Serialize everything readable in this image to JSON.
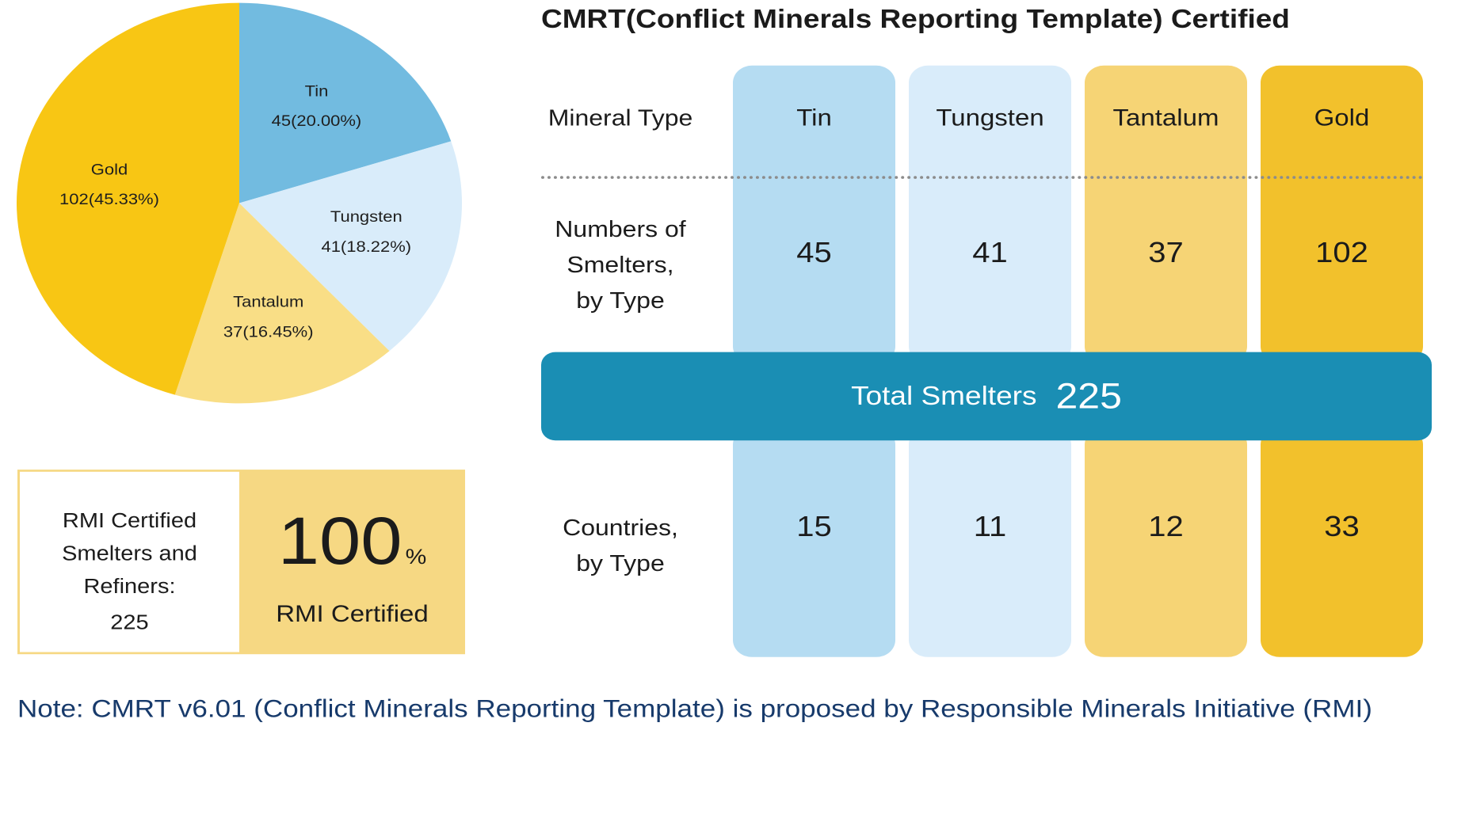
{
  "title": "CMRT(Conflict Minerals Reporting Template) Certified",
  "chart_data": {
    "type": "pie",
    "slices": [
      {
        "label": "Tin",
        "value": 45,
        "percent_label": "45(20.00%)",
        "color": "#72bbe0"
      },
      {
        "label": "Tungsten",
        "value": 41,
        "percent_label": "41(18.22%)",
        "color": "#d9ecfa"
      },
      {
        "label": "Tantalum",
        "value": 37,
        "percent_label": "37(16.45%)",
        "color": "#f9de86"
      },
      {
        "label": "Gold",
        "value": 102,
        "percent_label": "102(45.33%)",
        "color": "#f8c614"
      }
    ]
  },
  "rmi": {
    "label": "RMI Certified\nSmelters and\nRefiners:",
    "count": "225",
    "percent": "100",
    "percent_unit": "%",
    "certified_label": "RMI Certified"
  },
  "table": {
    "row_labels": {
      "mineral_type": "Mineral Type",
      "smelters": "Numbers of\nSmelters,\nby Type",
      "countries": "Countries,\nby Type"
    },
    "columns": [
      {
        "name": "Tin",
        "smelters": "45",
        "countries": "15",
        "color": "#b5dcf2"
      },
      {
        "name": "Tungsten",
        "smelters": "41",
        "countries": "11",
        "color": "#d9ecfa"
      },
      {
        "name": "Tantalum",
        "smelters": "37",
        "countries": "12",
        "color": "#f6d475"
      },
      {
        "name": "Gold",
        "smelters": "102",
        "countries": "33",
        "color": "#f2c12c"
      }
    ],
    "total_label": "Total Smelters",
    "total_value": "225"
  },
  "note": "Note: CMRT v6.01 (Conflict Minerals Reporting Template) is proposed by Responsible Minerals Initiative (RMI)"
}
